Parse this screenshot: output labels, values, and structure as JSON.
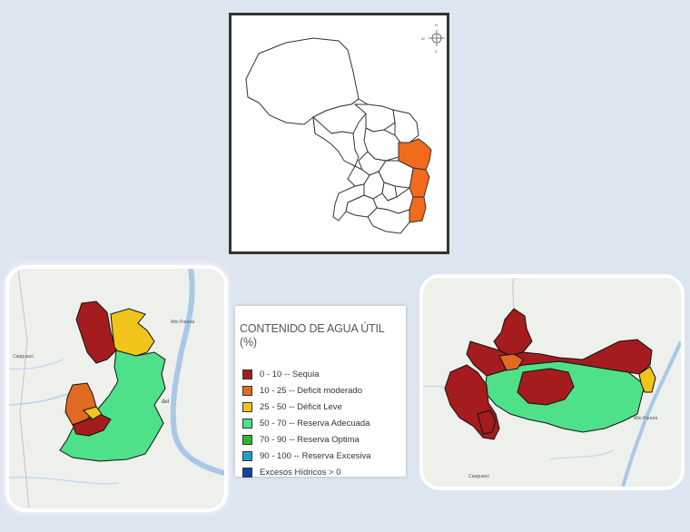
{
  "legend": {
    "title": "CONTENIDO DE AGUA ÚTIL (%)",
    "items": [
      {
        "label": "0 - 10 --  Sequia",
        "color": "#a51c1e"
      },
      {
        "label": "10 - 25 --  Deficit moderado",
        "color": "#e06a22"
      },
      {
        "label": "25 - 50 --  Déficit Leve",
        "color": "#f0c419"
      },
      {
        "label": "50 - 70 -- Reserva Adecuada",
        "color": "#4fe08a"
      },
      {
        "label": "70 - 90 -- Reserva Optima",
        "color": "#2ab82a"
      },
      {
        "label": "90 - 100 -- Reserva Excesiva",
        "color": "#1aa3c9"
      },
      {
        "label": "Excesos Hídricos  > 0",
        "color": "#1a3fa0"
      }
    ]
  },
  "overview": {
    "highlight_color": "#f26a1b",
    "compass_letters": {
      "n": "N",
      "s": "S",
      "e": "E",
      "w": "W"
    }
  },
  "map_left": {
    "places": {
      "a": "Alto Paraná",
      "b": "Caaguazú",
      "c": "del"
    }
  },
  "map_right": {
    "places": {
      "a": "Caaguazú",
      "b": "Alto Paraná"
    }
  }
}
